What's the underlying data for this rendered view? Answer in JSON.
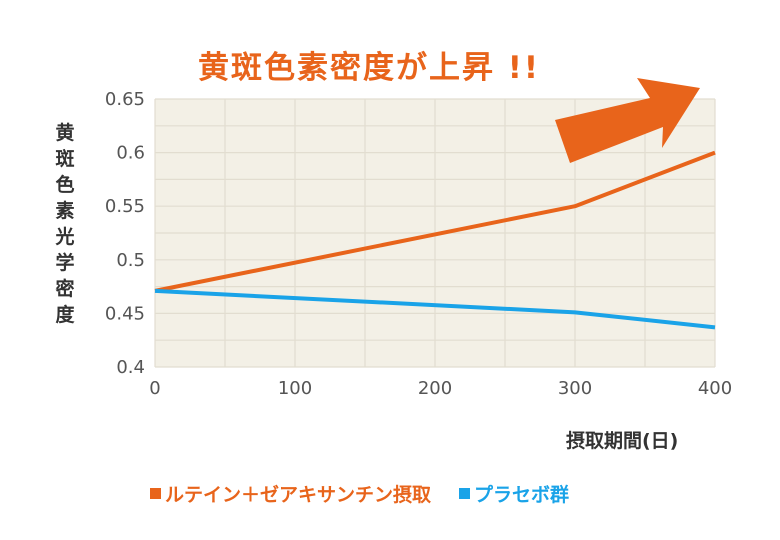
{
  "chart_data": {
    "type": "line",
    "headline": "黄斑色素密度が上昇 !!",
    "xlabel": "摂取期間(日)",
    "ylabel": "黄斑色素光学密度",
    "xlim": [
      0,
      400
    ],
    "ylim": [
      0.4,
      0.65
    ],
    "x_ticks": [
      "0",
      "100",
      "200",
      "300",
      "400"
    ],
    "y_ticks": [
      "0.4",
      "0.45",
      "0.5",
      "0.55",
      "0.6",
      "0.65"
    ],
    "x": [
      0,
      300,
      400
    ],
    "grid": true,
    "series": [
      {
        "name": "ルテイン＋ゼアキサンチン摂取",
        "color": "#e8641b",
        "values": [
          0.471,
          0.55,
          0.6
        ]
      },
      {
        "name": "プラセボ群",
        "color": "#1aa3e8",
        "values": [
          0.471,
          0.451,
          0.437
        ]
      }
    ],
    "colors": {
      "plot_bg": "#f3f0e6",
      "grid": "#e2ddd0",
      "arrow": "#e8641b"
    }
  }
}
